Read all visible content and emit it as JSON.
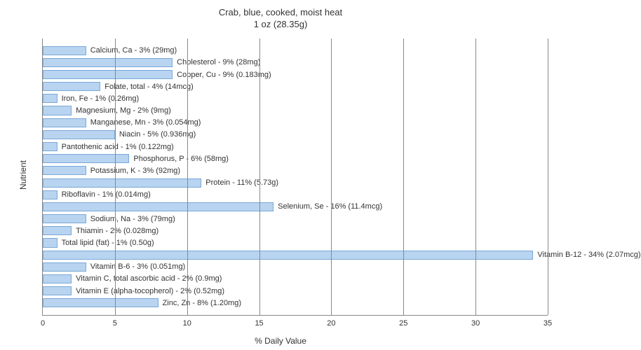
{
  "title_line1": "Crab, blue, cooked, moist heat",
  "title_line2": "1 oz (28.35g)",
  "ylabel": "Nutrient",
  "xlabel": "% Daily Value",
  "chart": {
    "type": "bar-horizontal",
    "xlim": [
      0,
      35
    ],
    "xtick_step": 5,
    "xticks": [
      0,
      5,
      10,
      15,
      20,
      25,
      30,
      35
    ],
    "bar_color": "#b8d4f0",
    "bar_border": "#7aa8d8",
    "grid_color": "#888888",
    "background_color": "#ffffff",
    "text_color": "#333333",
    "label_fontsize": 11,
    "axis_fontsize": 12,
    "title_fontsize": 13,
    "items": [
      {
        "label": "Calcium, Ca - 3% (29mg)",
        "value": 3
      },
      {
        "label": "Cholesterol - 9% (28mg)",
        "value": 9
      },
      {
        "label": "Copper, Cu - 9% (0.183mg)",
        "value": 9
      },
      {
        "label": "Folate, total - 4% (14mcg)",
        "value": 4
      },
      {
        "label": "Iron, Fe - 1% (0.26mg)",
        "value": 1
      },
      {
        "label": "Magnesium, Mg - 2% (9mg)",
        "value": 2
      },
      {
        "label": "Manganese, Mn - 3% (0.054mg)",
        "value": 3
      },
      {
        "label": "Niacin - 5% (0.936mg)",
        "value": 5
      },
      {
        "label": "Pantothenic acid - 1% (0.122mg)",
        "value": 1
      },
      {
        "label": "Phosphorus, P - 6% (58mg)",
        "value": 6
      },
      {
        "label": "Potassium, K - 3% (92mg)",
        "value": 3
      },
      {
        "label": "Protein - 11% (5.73g)",
        "value": 11
      },
      {
        "label": "Riboflavin - 1% (0.014mg)",
        "value": 1
      },
      {
        "label": "Selenium, Se - 16% (11.4mcg)",
        "value": 16
      },
      {
        "label": "Sodium, Na - 3% (79mg)",
        "value": 3
      },
      {
        "label": "Thiamin - 2% (0.028mg)",
        "value": 2
      },
      {
        "label": "Total lipid (fat) - 1% (0.50g)",
        "value": 1
      },
      {
        "label": "Vitamin B-12 - 34% (2.07mcg)",
        "value": 34
      },
      {
        "label": "Vitamin B-6 - 3% (0.051mg)",
        "value": 3
      },
      {
        "label": "Vitamin C, total ascorbic acid - 2% (0.9mg)",
        "value": 2
      },
      {
        "label": "Vitamin E (alpha-tocopherol) - 2% (0.52mg)",
        "value": 2
      },
      {
        "label": "Zinc, Zn - 8% (1.20mg)",
        "value": 8
      }
    ]
  }
}
